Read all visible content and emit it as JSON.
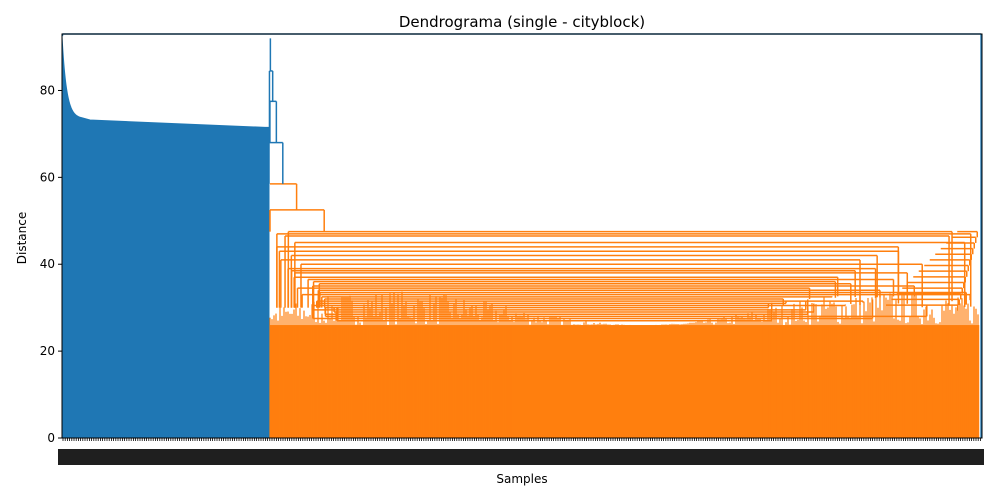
{
  "chart_data": {
    "type": "dendrogram",
    "title": "Dendrograma (single - cityblock)",
    "xlabel": "Samples",
    "ylabel": "Distance",
    "ylim": [
      0,
      93
    ],
    "y_ticks": [
      0,
      20,
      40,
      60,
      80
    ],
    "grid": false,
    "legend": "none",
    "colors": {
      "cluster_blue": "#1f77b4",
      "cluster_orange": "#ff7f0e",
      "above_threshold": "#1f77b4",
      "axis": "#000000"
    },
    "clusters": [
      {
        "color": "cluster_blue",
        "x_range": [
          0,
          0.225
        ],
        "leaf_heights": {
          "left_edge": 92.5,
          "plateau_start": 73.5,
          "plateau_end": 71.5
        },
        "merge_height": 92.5
      },
      {
        "color": "cluster_orange",
        "x_range": [
          0.225,
          0.997
        ],
        "leaf_height_range": [
          26,
          34
        ],
        "merge_heights": [
          47.5,
          47.0,
          46.5,
          45.0,
          44.0,
          43.0,
          42.0,
          41.0,
          40.0,
          39.0,
          38.5,
          38.0,
          37.0,
          36.5,
          36.0,
          35.5,
          35.0,
          34.5,
          34.0,
          33.5,
          33.0,
          32.5,
          32.0,
          31.5,
          31.0,
          30.5,
          30.0,
          29.5,
          29.0,
          28.5,
          28.0,
          27.5,
          27.0
        ],
        "merge_height": 52.5
      }
    ],
    "top_merges": [
      {
        "height": 58.5
      },
      {
        "height": 68.0
      },
      {
        "height": 77.5
      },
      {
        "height": 84.5
      },
      {
        "height": 93.0
      }
    ],
    "final_singleton": {
      "x_fraction": 0.999,
      "height": 93.0
    }
  }
}
